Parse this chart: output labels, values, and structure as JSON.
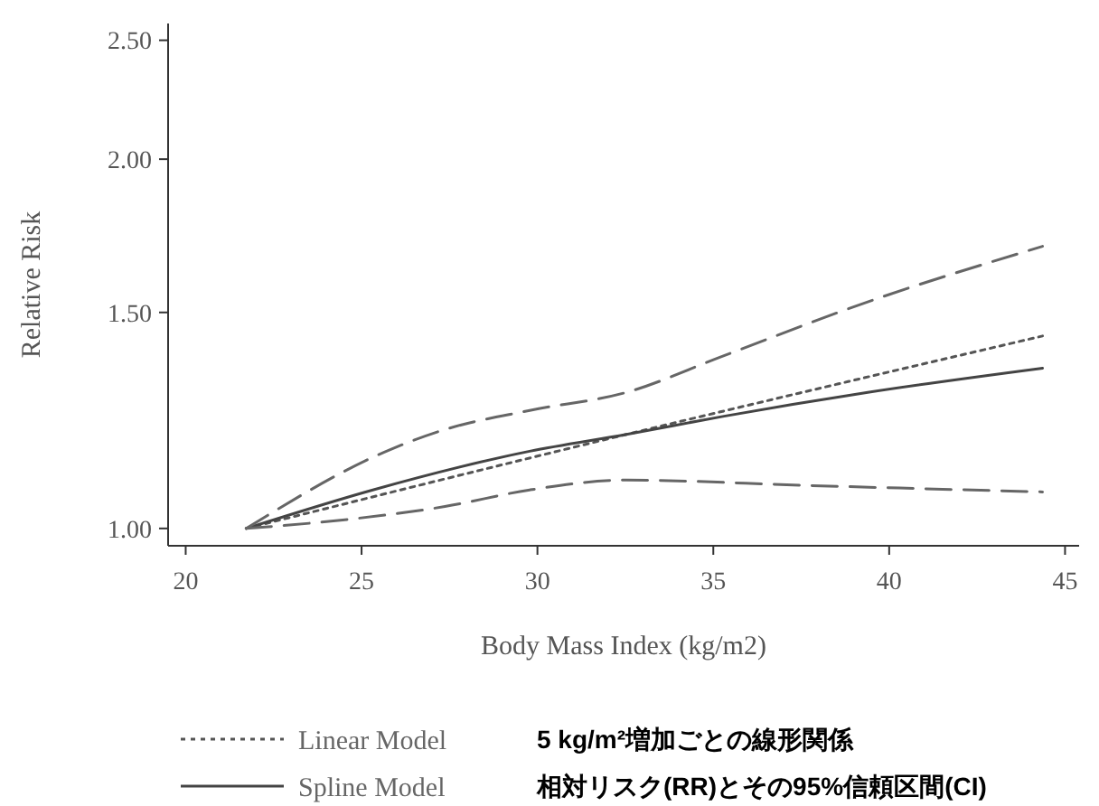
{
  "chart_data": {
    "type": "line",
    "xlabel": "Body Mass Index (kg/m2)",
    "ylabel": "Relative Risk",
    "xlim": [
      19.5,
      45.4
    ],
    "xticks": [
      20,
      25,
      30,
      35,
      40,
      45
    ],
    "ylim": [
      0.968,
      2.58
    ],
    "yticks": [
      {
        "value": 1,
        "label": "1.00"
      },
      {
        "value": 1.5,
        "label": "1.50"
      },
      {
        "value": 2,
        "label": "2.00"
      },
      {
        "value": 2.5,
        "label": "2.50"
      }
    ],
    "log": "y",
    "grid": false,
    "legend": "bottom",
    "marker": "none",
    "series": [
      {
        "name": "Linear Model",
        "color": "#555555",
        "line_style": "dotted",
        "x": [
          21.72,
          32.53,
          44.36
        ],
        "values": [
          1.0,
          1.193,
          1.435
        ]
      },
      {
        "name": "Spline Model",
        "color": "#444444",
        "line_style": "solid",
        "x": [
          21.72,
          25.32,
          29.78,
          32.53,
          35.27,
          39.39,
          44.36
        ],
        "values": [
          1.0,
          1.075,
          1.156,
          1.193,
          1.234,
          1.291,
          1.351
        ]
      },
      {
        "color": "#666666",
        "line_style": "dashed",
        "x": [
          21.72,
          25.83,
          27.37,
          29.78,
          32.53,
          35.27,
          39.39,
          44.36
        ],
        "values": [
          1.0,
          1.16,
          1.204,
          1.248,
          1.291,
          1.382,
          1.53,
          1.698
        ]
      },
      {
        "color": "#666666",
        "line_style": "dashed",
        "x": [
          21.72,
          24.46,
          27.37,
          29.78,
          32.53,
          37.68,
          44.36
        ],
        "values": [
          1.0,
          1.016,
          1.042,
          1.075,
          1.095,
          1.084,
          1.071
        ]
      }
    ],
    "annotations": [
      "5 kg/m²増加ごとの線形関係",
      "相対リスク(RR)とその95%信頼区間(CI)"
    ]
  }
}
